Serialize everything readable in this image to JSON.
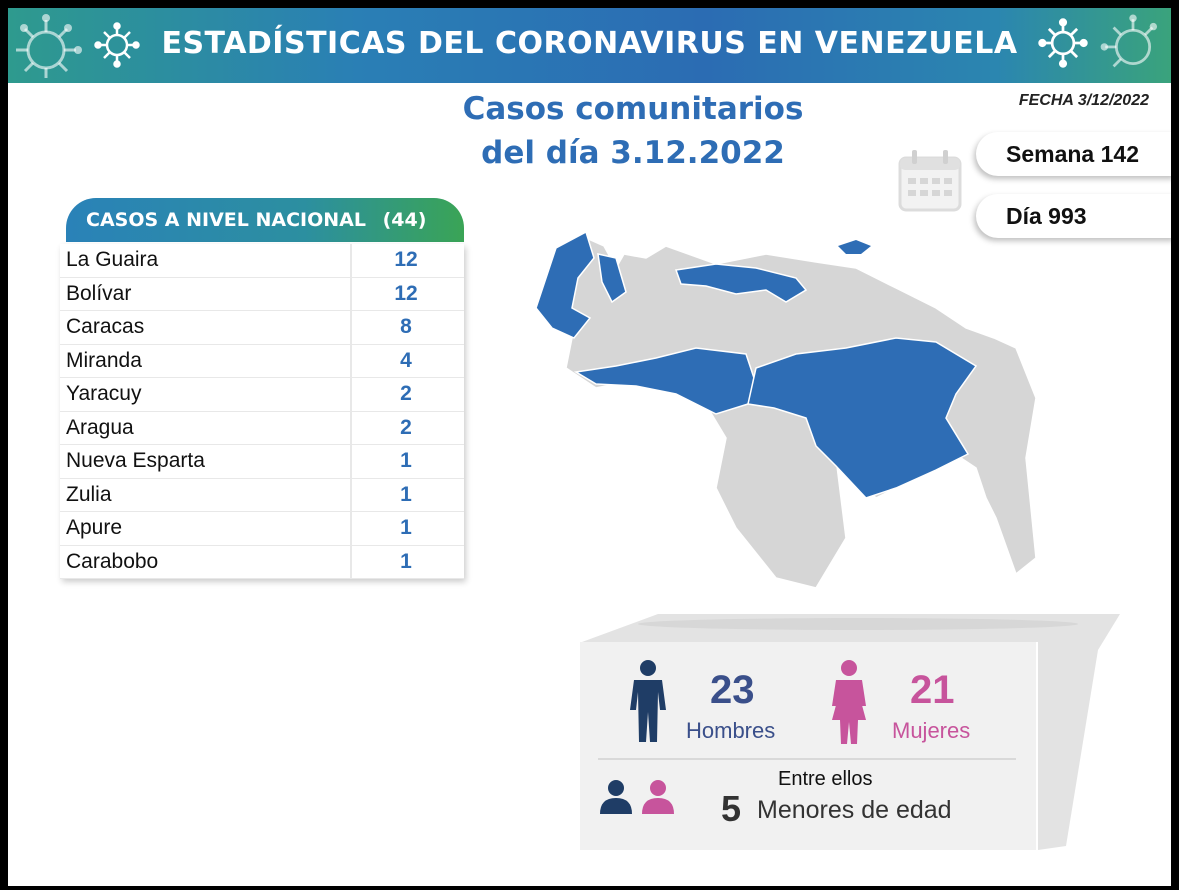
{
  "banner": {
    "title": "ESTADÍSTICAS DEL CORONAVIRUS EN VENEZUELA"
  },
  "fecha": "FECHA 3/12/2022",
  "headline": {
    "line1": "Casos comunitarios",
    "line2": "del día 3.12.2022"
  },
  "counters": {
    "semana": "Semana 142",
    "dia": "Día 993"
  },
  "national": {
    "title": "CASOS A NIVEL NACIONAL",
    "total": "(44)",
    "rows": [
      {
        "state": "La Guaira",
        "cases": "12"
      },
      {
        "state": "Bolívar",
        "cases": "12"
      },
      {
        "state": "Caracas",
        "cases": "8"
      },
      {
        "state": "Miranda",
        "cases": "4"
      },
      {
        "state": "Yaracuy",
        "cases": "2"
      },
      {
        "state": "Aragua",
        "cases": "2"
      },
      {
        "state": "Nueva Esparta",
        "cases": "1"
      },
      {
        "state": "Zulia",
        "cases": "1"
      },
      {
        "state": "Apure",
        "cases": "1"
      },
      {
        "state": "Carabobo",
        "cases": "1"
      }
    ]
  },
  "gender": {
    "men_count": "23",
    "men_label": "Hombres",
    "women_count": "21",
    "women_label": "Mujeres",
    "among_label": "Entre ellos",
    "minors_count": "5",
    "minors_label": "Menores de edad"
  },
  "colors": {
    "accent_blue": "#2e6db5",
    "men": "#1f3d66",
    "women": "#c7549c",
    "map_gray": "#d6d6d6"
  }
}
